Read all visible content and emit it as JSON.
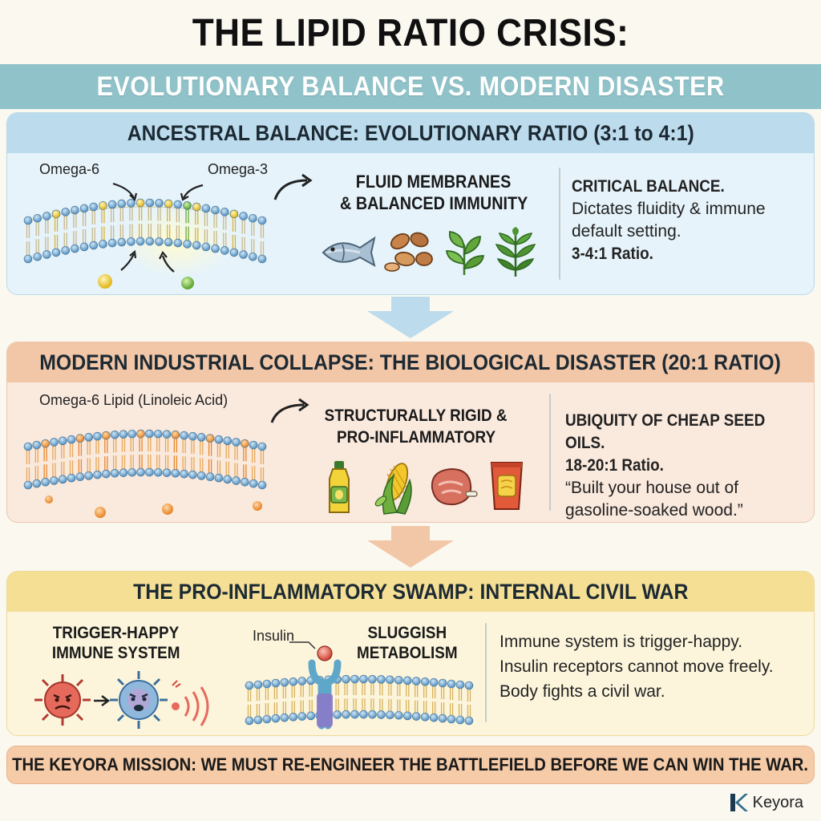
{
  "title": "THE LIPID RATIO CRISIS:",
  "subtitle": "EVOLUTIONARY BALANCE VS. MODERN DISASTER",
  "panel1": {
    "heading": "ANCESTRAL BALANCE: EVOLUTIONARY RATIO (3:1 to 4:1)",
    "label_omega6": "Omega-6",
    "label_omega3": "Omega-3",
    "outcome_line1": "FLUID MEMBRANES",
    "outcome_line2": "& BALANCED IMMUNITY",
    "side_title": "CRITICAL BALANCE.",
    "side_line1": "Dictates fluidity & immune",
    "side_line2": "default setting.",
    "side_ratio": "3-4:1 Ratio.",
    "food_icons": [
      "fish-icon",
      "nuts-icon",
      "leafy-greens-icon",
      "herb-icon"
    ]
  },
  "panel2": {
    "heading": "MODERN INDUSTRIAL COLLAPSE: THE BIOLOGICAL DISASTER (20:1 RATIO)",
    "label_lipid": "Omega-6 Lipid (Linoleic Acid)",
    "outcome_line1": "STRUCTURALLY RIGID &",
    "outcome_line2": "PRO-INFLAMMATORY",
    "side_title": "UBIQUITY OF CHEAP SEED OILS.",
    "side_ratio": "18-20:1 Ratio.",
    "side_quote1": "“Built your house out of",
    "side_quote2": "gasoline-soaked wood.”",
    "food_icons": [
      "oil-bottle-icon",
      "corn-soy-icon",
      "meat-icon",
      "chips-bag-icon"
    ]
  },
  "panel3": {
    "heading": "THE PRO-INFLAMMATORY SWAMP: INTERNAL CIVIL WAR",
    "immune_line1": "TRIGGER-HAPPY",
    "immune_line2": "IMMUNE SYSTEM",
    "insulin_label": "Insulin",
    "metab_line1": "SLUGGISH",
    "metab_line2": "METABOLISM",
    "side_line1": "Immune system is trigger-happy.",
    "side_line2": "Insulin receptors cannot move freely.",
    "side_line3": "Body fights a civil war."
  },
  "mission": "THE KEYORA MISSION: WE MUST RE-ENGINEER THE BATTLEFIELD BEFORE WE CAN WIN THE WAR.",
  "brand": "Keyora",
  "colors": {
    "teal_band": "#8fc3c9",
    "blue_panel": "#e6f3fa",
    "orange_panel": "#fae9dd",
    "yellow_panel": "#fcf5dc",
    "mission_band": "#f5cba8"
  }
}
